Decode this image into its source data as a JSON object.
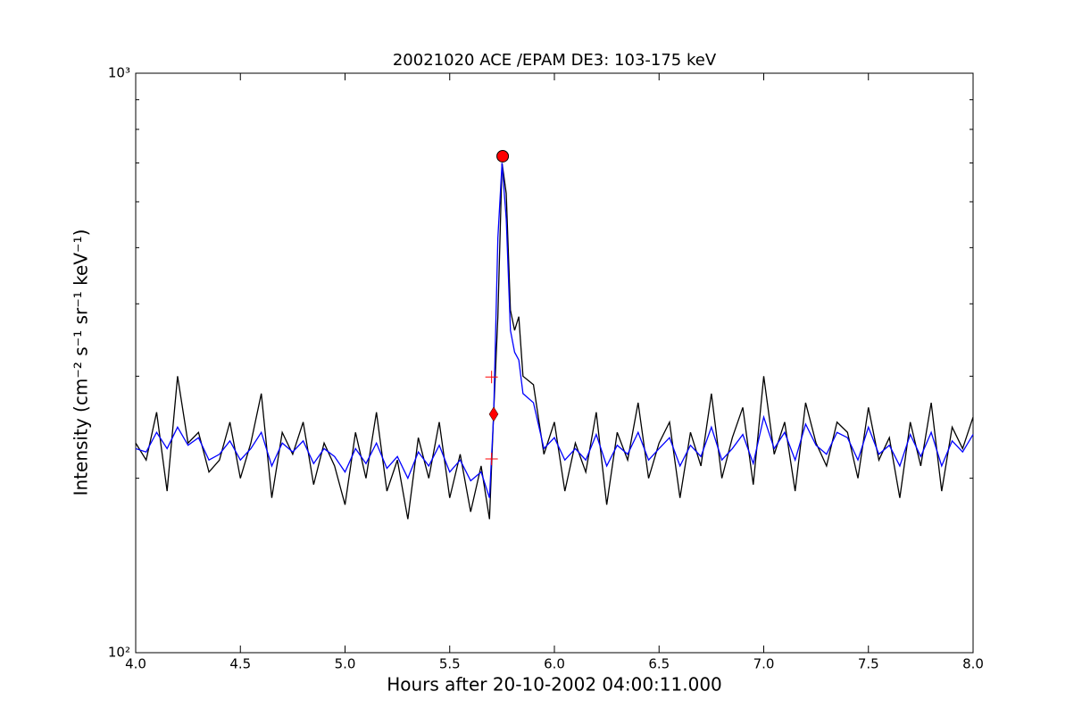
{
  "chart_data": {
    "type": "line",
    "title": "20021020 ACE /EPAM DE3: 103-175 keV",
    "xlabel": "Hours after 20-10-2002 04:00:11.000",
    "ylabel": "Intensity (cm⁻² s⁻¹ sr⁻¹ keV⁻¹)",
    "yscale": "log",
    "xlim": [
      4,
      8
    ],
    "ylim": [
      100,
      1000
    ],
    "xticks": [
      {
        "value": 4,
        "label": "4.0"
      },
      4.5,
      {
        "value": 5,
        "label": "5.0"
      },
      5.5,
      {
        "value": 6,
        "label": "6.0"
      },
      6.5,
      {
        "value": 7,
        "label": "7.0"
      },
      7.5,
      {
        "value": 8,
        "label": "8.0"
      }
    ],
    "yticks": [
      {
        "value": 100,
        "label": "10²"
      },
      {
        "value": 1000,
        "label": "10³"
      }
    ],
    "yminorticks": [
      200,
      300,
      400,
      500,
      600,
      700,
      800,
      900
    ],
    "x": [
      4.0,
      4.05,
      4.1,
      4.15,
      4.2,
      4.25,
      4.3,
      4.35,
      4.4,
      4.45,
      4.5,
      4.55,
      4.6,
      4.65,
      4.7,
      4.75,
      4.8,
      4.85,
      4.9,
      4.95,
      5.0,
      5.05,
      5.1,
      5.15,
      5.2,
      5.25,
      5.3,
      5.35,
      5.4,
      5.45,
      5.5,
      5.55,
      5.6,
      5.65,
      5.69,
      5.71,
      5.73,
      5.75,
      5.77,
      5.79,
      5.81,
      5.83,
      5.85,
      5.9,
      5.95,
      6.0,
      6.05,
      6.1,
      6.15,
      6.2,
      6.25,
      6.3,
      6.35,
      6.4,
      6.45,
      6.5,
      6.55,
      6.6,
      6.65,
      6.7,
      6.75,
      6.8,
      6.85,
      6.9,
      6.95,
      7.0,
      7.05,
      7.1,
      7.15,
      7.2,
      7.25,
      7.3,
      7.35,
      7.4,
      7.45,
      7.5,
      7.55,
      7.6,
      7.65,
      7.7,
      7.75,
      7.8,
      7.85,
      7.9,
      7.95,
      8.0
    ],
    "series": [
      {
        "color": "#000000",
        "values": [
          230,
          215,
          260,
          190,
          300,
          230,
          240,
          205,
          215,
          250,
          200,
          230,
          280,
          185,
          240,
          220,
          250,
          195,
          230,
          210,
          180,
          240,
          200,
          260,
          190,
          215,
          170,
          235,
          200,
          250,
          185,
          220,
          175,
          210,
          170,
          260,
          380,
          700,
          620,
          390,
          360,
          380,
          300,
          290,
          220,
          250,
          190,
          230,
          205,
          260,
          180,
          240,
          215,
          270,
          200,
          230,
          250,
          185,
          240,
          210,
          280,
          200,
          235,
          265,
          195,
          300,
          220,
          250,
          190,
          270,
          230,
          210,
          250,
          240,
          200,
          265,
          215,
          235,
          185,
          250,
          210,
          270,
          190,
          245,
          225,
          255
        ]
      },
      {
        "color": "#0000ff",
        "values": [
          225,
          222,
          240,
          225,
          245,
          228,
          235,
          215,
          220,
          232,
          215,
          225,
          240,
          210,
          230,
          222,
          232,
          212,
          225,
          218,
          205,
          225,
          212,
          230,
          208,
          218,
          200,
          222,
          210,
          228,
          205,
          215,
          198,
          205,
          185,
          258,
          520,
          700,
          560,
          360,
          330,
          320,
          280,
          270,
          225,
          235,
          215,
          225,
          215,
          238,
          210,
          228,
          220,
          240,
          215,
          225,
          235,
          210,
          228,
          218,
          245,
          215,
          225,
          238,
          212,
          255,
          225,
          240,
          215,
          248,
          228,
          220,
          240,
          235,
          215,
          245,
          220,
          228,
          210,
          238,
          218,
          240,
          210,
          232,
          222,
          238
        ]
      }
    ],
    "markers": [
      {
        "shape": "circle",
        "color": "#ff0000",
        "x": 5.753,
        "y": 719
      },
      {
        "shape": "diamond",
        "color": "#ff0000",
        "x": 5.71,
        "y": 258
      },
      {
        "shape": "plus",
        "color": "#ff0000",
        "x": 5.7,
        "y": 299
      },
      {
        "shape": "plus",
        "color": "#ff0000",
        "x": 5.7,
        "y": 216
      }
    ]
  }
}
